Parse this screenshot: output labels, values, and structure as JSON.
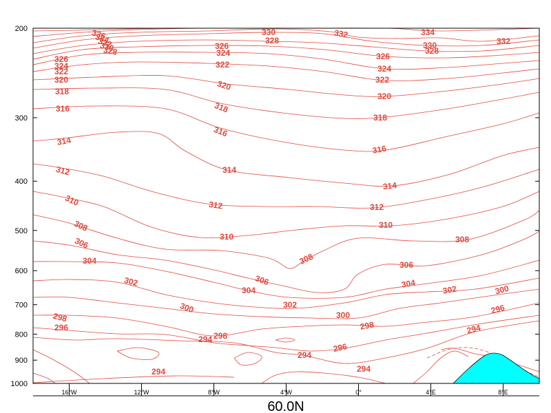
{
  "chart_data": {
    "type": "contour",
    "title": "60.0N",
    "x_ticks": [
      "16°W",
      "12°W",
      "8°W",
      "4°W",
      "0°",
      "4°E",
      "8°E"
    ],
    "x_values": [
      -16,
      -12,
      -8,
      -4,
      0,
      4,
      8
    ],
    "xlim": [
      -18,
      10
    ],
    "y_ticks": [
      "200",
      "300",
      "400",
      "500",
      "600",
      "700",
      "800",
      "900",
      "1000"
    ],
    "y_values": [
      200,
      300,
      400,
      500,
      600,
      700,
      800,
      900,
      1000
    ],
    "ylim": [
      1000,
      200
    ],
    "y_scale": "log",
    "contour_interval": 2,
    "contours": [
      {
        "level": 294,
        "label": "294"
      },
      {
        "level": 296,
        "label": "296"
      },
      {
        "level": 298,
        "label": "298"
      },
      {
        "level": 300,
        "label": "300"
      },
      {
        "level": 302,
        "label": "302"
      },
      {
        "level": 304,
        "label": "304"
      },
      {
        "level": 306,
        "label": "306"
      },
      {
        "level": 308,
        "label": "308"
      },
      {
        "level": 310,
        "label": "310"
      },
      {
        "level": 312,
        "label": "312"
      },
      {
        "level": 314,
        "label": "314"
      },
      {
        "level": 316,
        "label": "316"
      },
      {
        "level": 318,
        "label": "318"
      },
      {
        "level": 320,
        "label": "320"
      },
      {
        "level": 322,
        "label": "322"
      },
      {
        "level": 324,
        "label": "324"
      },
      {
        "level": 326,
        "label": "326"
      },
      {
        "level": 328,
        "label": "328"
      },
      {
        "level": 330,
        "label": "330"
      },
      {
        "level": 332,
        "label": "332"
      },
      {
        "level": 334,
        "label": "334"
      },
      {
        "level": 336,
        "label": "336"
      }
    ],
    "terrain_color": "#00ffff",
    "contour_color": "#e0483c"
  }
}
